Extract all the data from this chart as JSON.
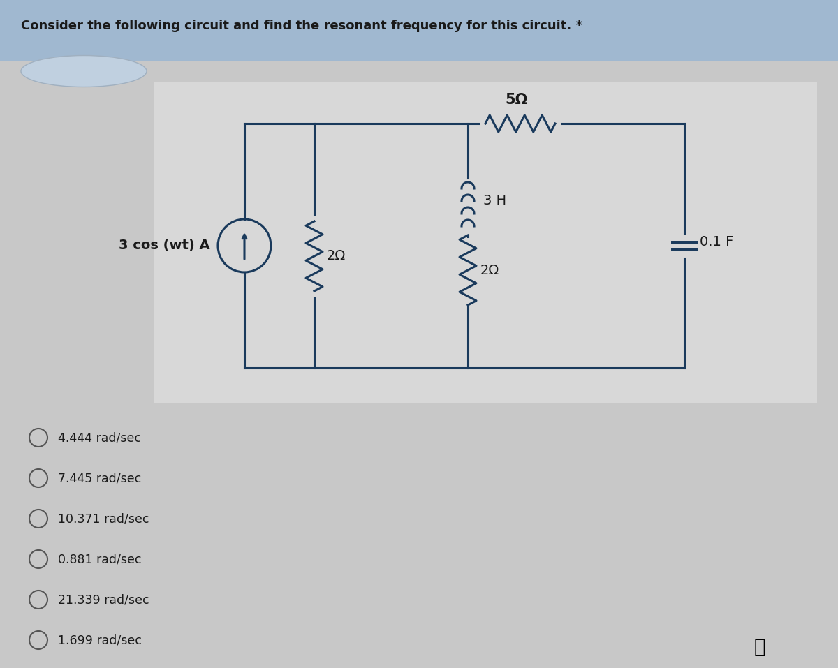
{
  "title": "Consider the following circuit and find the resonant frequency for this circuit. *",
  "title_fontsize": 13,
  "bg_color": "#c8c8c8",
  "header_bg_color": "#a0b8d0",
  "circuit_bg_color": "#d8d8d8",
  "source_label": "3 cos (wt) A",
  "r1_label": "5Ω",
  "r2_label": "2Ω",
  "r3_label": "2Ω",
  "l_label": "3 H",
  "c_label": "0.1 F",
  "options": [
    "4.444 rad/sec",
    "7.445 rad/sec",
    "10.371 rad/sec",
    "0.881 rad/sec",
    "21.339 rad/sec",
    "1.699 rad/sec"
  ],
  "text_color": "#1a1a1a",
  "circuit_line_color": "#1a3a5c",
  "option_circle_color": "#555555"
}
